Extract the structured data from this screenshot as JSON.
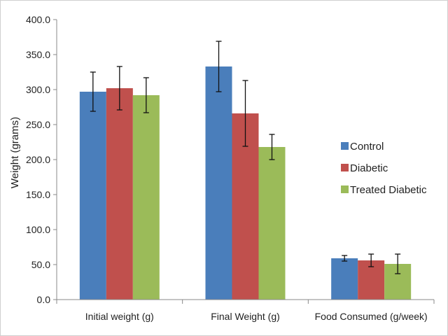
{
  "chart_data": {
    "type": "bar",
    "ylabel": "Weight (grams)",
    "ylim": [
      0,
      400
    ],
    "y_ticks": [
      "0.0",
      "50.0",
      "100.0",
      "150.0",
      "200.0",
      "250.0",
      "300.0",
      "350.0",
      "400.0"
    ],
    "categories": [
      "Initial weight (g)",
      "Final Weight (g)",
      "Food Consumed (g/week)"
    ],
    "series": [
      {
        "name": "Control",
        "color": "#4a7ebb",
        "values": [
          297,
          333,
          59
        ],
        "errors": [
          28,
          36,
          4
        ]
      },
      {
        "name": "Diabetic",
        "color": "#c0504d",
        "values": [
          302,
          266,
          56
        ],
        "errors": [
          31,
          47,
          9
        ]
      },
      {
        "name": "Treated Diabetic",
        "color": "#9bbb59",
        "values": [
          292,
          218,
          51
        ],
        "errors": [
          25,
          18,
          14
        ]
      }
    ],
    "grid": false,
    "legend_position": "right"
  }
}
